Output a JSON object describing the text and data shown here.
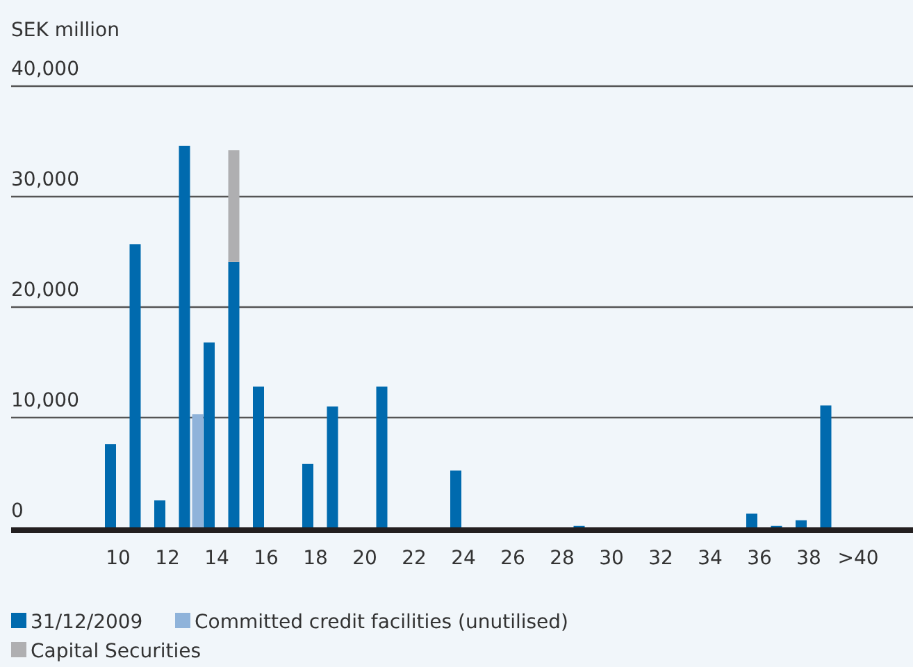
{
  "chart_data": {
    "type": "bar",
    "ylabel": "SEK million",
    "categories": [
      "10",
      null,
      "12",
      null,
      "14",
      null,
      "16",
      null,
      "18",
      null,
      "20",
      null,
      "22",
      null,
      "24",
      null,
      "26",
      null,
      "28",
      null,
      "30",
      null,
      "32",
      null,
      "34",
      null,
      "36",
      null,
      "38",
      null,
      ">40"
    ],
    "series": [
      {
        "name": "31/12/2009",
        "color": "#006aae",
        "values": [
          7600,
          25700,
          2500,
          34600,
          16800,
          24100,
          12800,
          null,
          5800,
          11000,
          null,
          12800,
          null,
          null,
          5200,
          null,
          null,
          null,
          null,
          200,
          null,
          null,
          null,
          null,
          null,
          null,
          1300,
          200,
          700,
          11100,
          null
        ]
      },
      {
        "name": "Committed credit facilities (unutilised)",
        "color": "#8fb3da",
        "values": [
          null,
          null,
          null,
          10300,
          null,
          null,
          null,
          null,
          null,
          null,
          null,
          null,
          null,
          null,
          null,
          null,
          null,
          null,
          null,
          null,
          null,
          null,
          null,
          null,
          null,
          null,
          null,
          null,
          null,
          null,
          null
        ]
      },
      {
        "name": "Capital Securities",
        "color": "#afafb1",
        "base": [
          null,
          null,
          null,
          null,
          null,
          24100,
          null,
          null,
          null,
          null,
          null,
          null,
          null,
          null,
          null,
          null,
          null,
          null,
          null,
          null,
          null,
          null,
          null,
          null,
          null,
          null,
          null,
          null,
          null,
          null,
          null
        ],
        "values": [
          null,
          null,
          null,
          null,
          null,
          10100,
          null,
          null,
          null,
          null,
          null,
          null,
          null,
          null,
          null,
          null,
          null,
          null,
          null,
          null,
          null,
          null,
          null,
          null,
          null,
          null,
          null,
          null,
          null,
          null,
          null
        ]
      }
    ],
    "ylim": [
      0,
      40000
    ],
    "yticks": [
      {
        "value": 0,
        "label": "0"
      },
      {
        "value": 10000,
        "label": "10,000"
      },
      {
        "value": 20000,
        "label": "20,000"
      },
      {
        "value": 30000,
        "label": "30,000"
      },
      {
        "value": 40000,
        "label": "40,000"
      }
    ],
    "grid": "y",
    "legend": "bottom"
  }
}
